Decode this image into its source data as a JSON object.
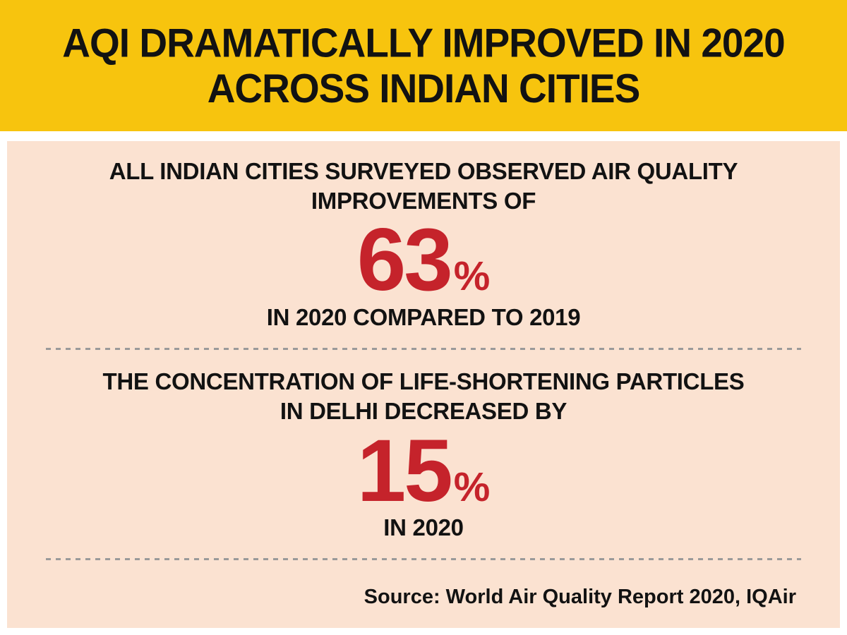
{
  "header": {
    "title_lines": [
      "AQI DRAMATICALLY IMPROVED IN 2020",
      "ACROSS INDIAN CITIES"
    ]
  },
  "sections": [
    {
      "lead_lines": [
        "ALL INDIAN CITIES SURVEYED OBSERVED AIR QUALITY",
        "IMPROVEMENTS OF"
      ],
      "stat_value": "63",
      "stat_unit": "%",
      "caption": "IN 2020 COMPARED TO 2019"
    },
    {
      "lead_lines": [
        "THE CONCENTRATION OF LIFE-SHORTENING PARTICLES",
        "IN DELHI DECREASED BY"
      ],
      "stat_value": "15",
      "stat_unit": "%",
      "caption": "IN 2020"
    }
  ],
  "source": "Source: World Air Quality Report 2020, IQAir",
  "colors": {
    "header_bg": "#F7C40E",
    "body_bg": "#FBE2D1",
    "stat_red": "#C5232B",
    "text": "#121212",
    "divider": "#9A9A9A"
  }
}
